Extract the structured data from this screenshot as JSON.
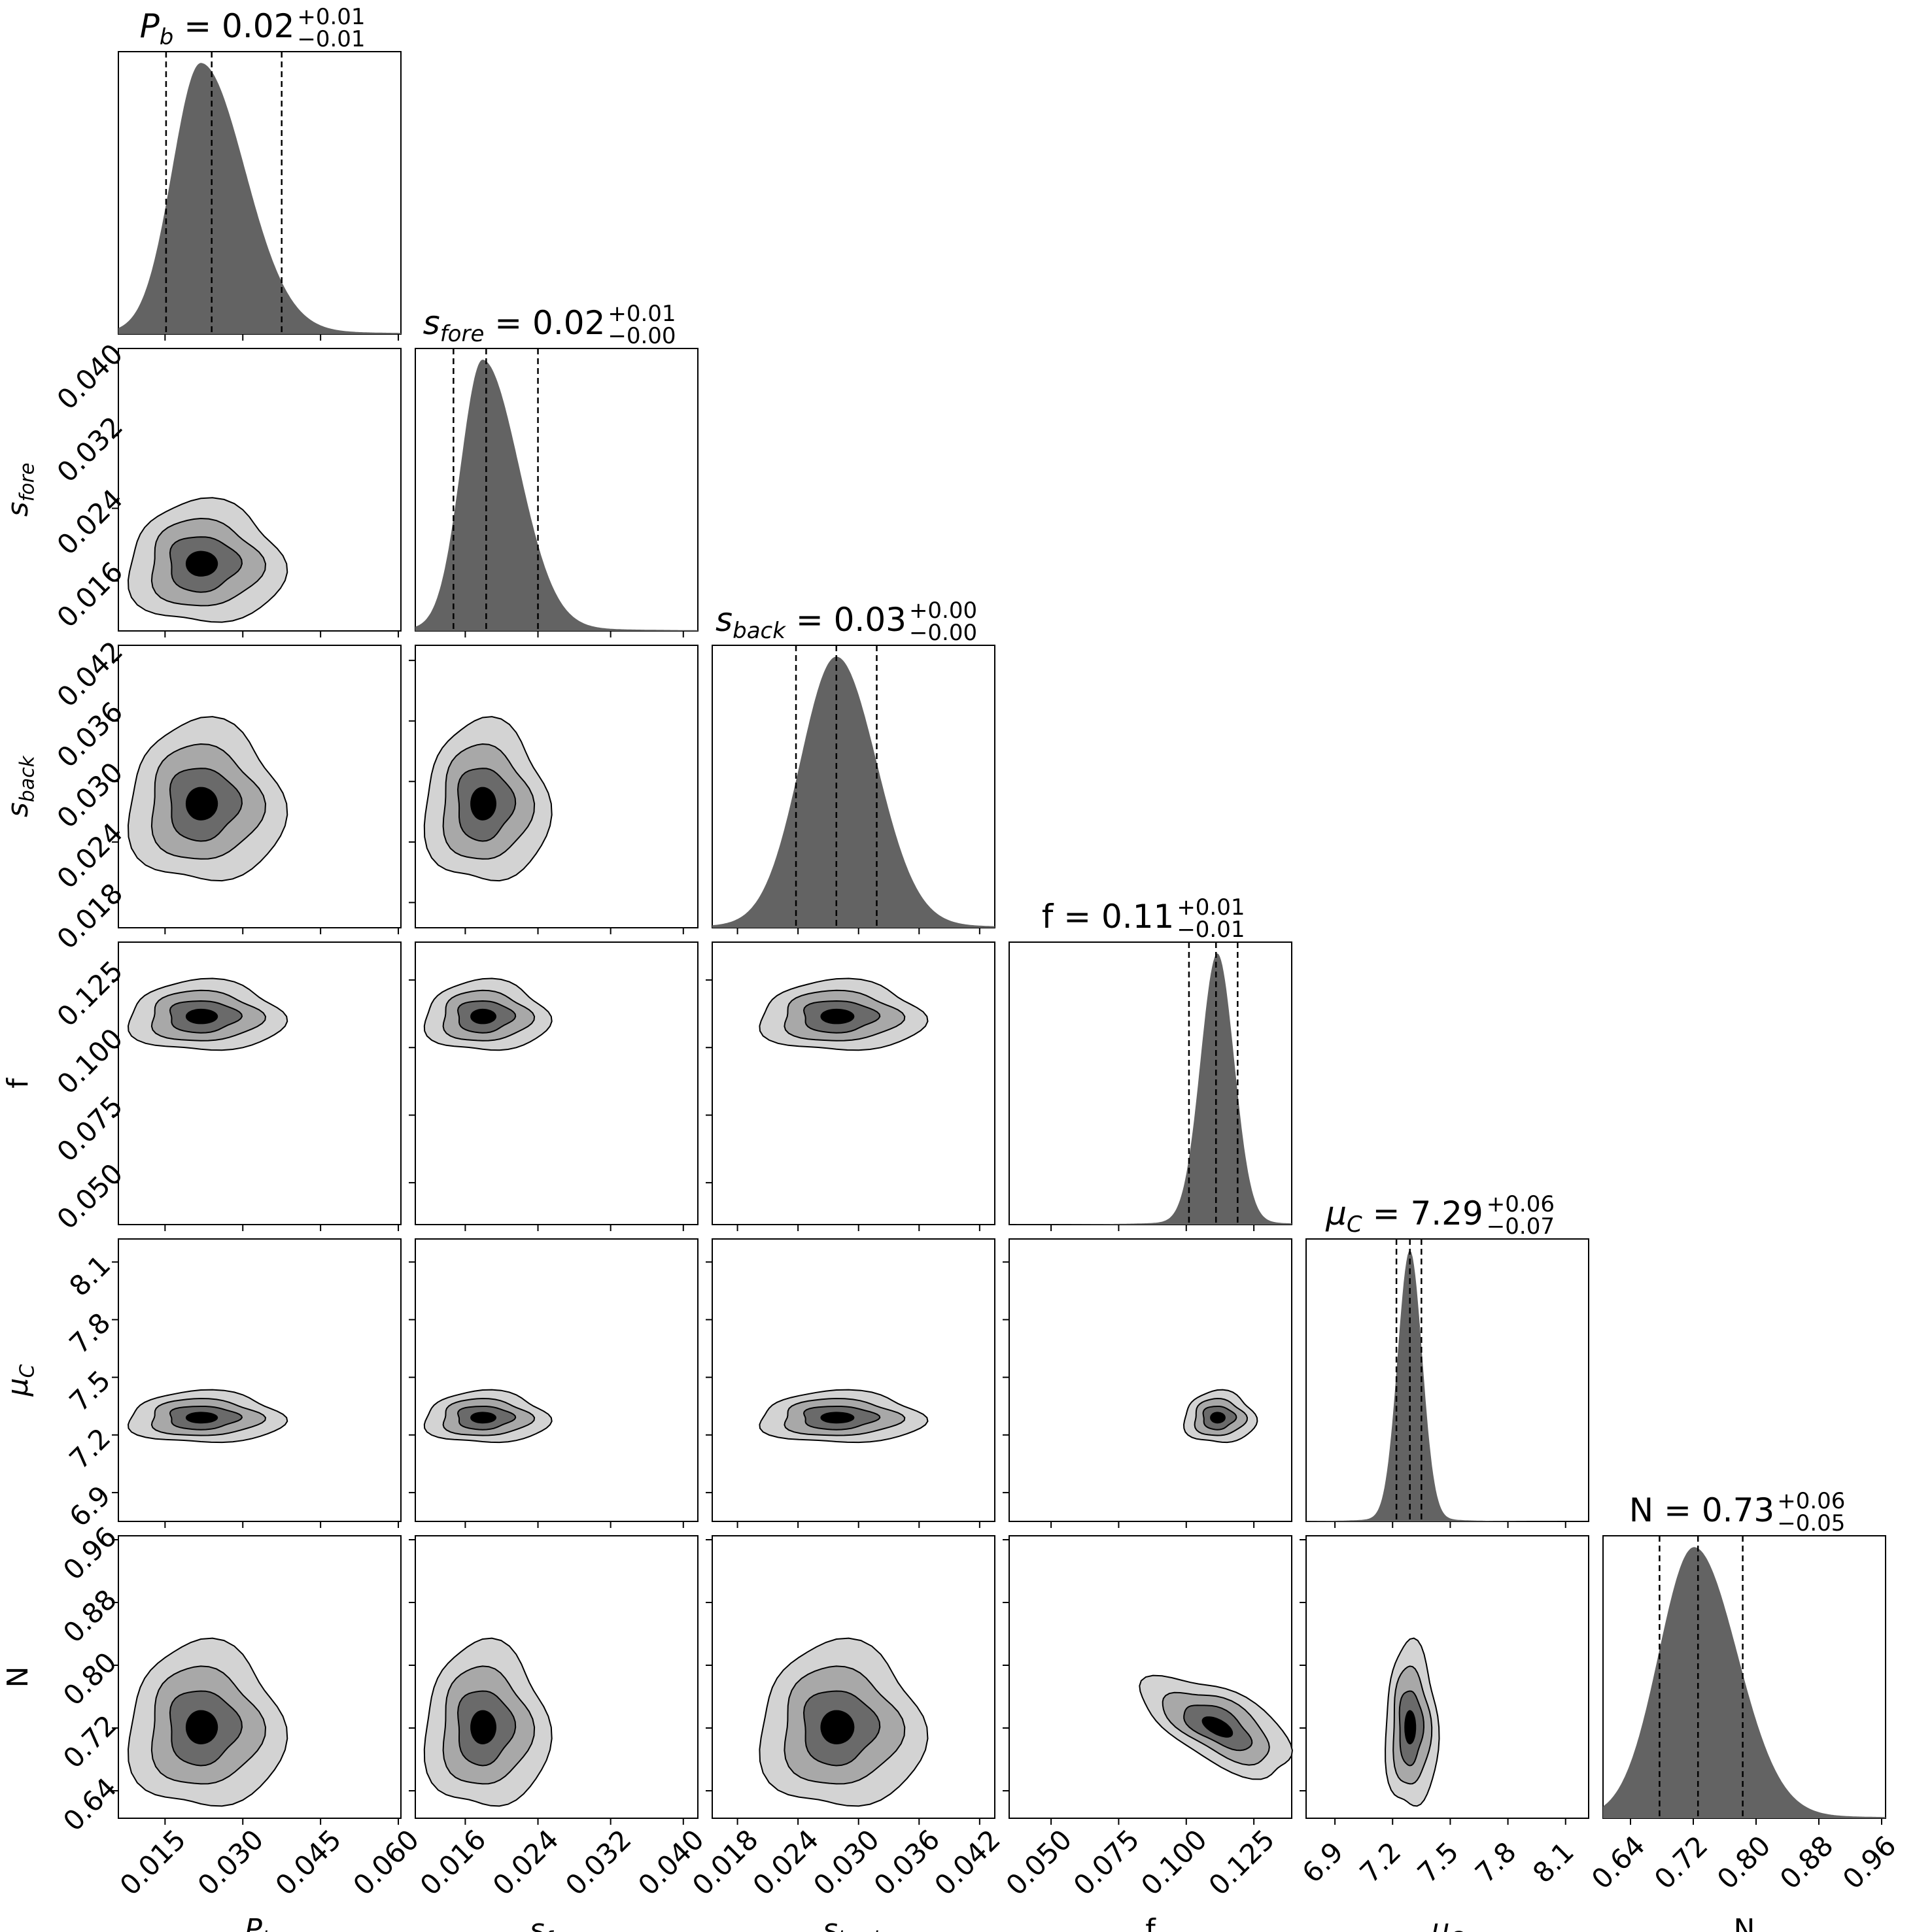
{
  "chart_data": {
    "type": "corner",
    "parameters": [
      {
        "key": "Pb",
        "label_base": "P",
        "label_sub": "b",
        "title_value": "0.02",
        "title_plus": "+0.01",
        "title_minus": "−0.01",
        "median": 0.024,
        "q16": 0.0152,
        "q84": 0.0375,
        "range": [
          0.006,
          0.0605
        ],
        "ticks": [
          "0.015",
          "0.030",
          "0.045",
          "0.060"
        ],
        "tick_values": [
          0.015,
          0.03,
          0.045,
          0.06
        ],
        "hist": {
          "peak": 0.0219,
          "sigma_left": 0.0055,
          "sigma_right": 0.0085
        }
      },
      {
        "key": "sfore",
        "label_base": "s",
        "label_sub": "fore",
        "title_value": "0.02",
        "title_plus": "+0.01",
        "title_minus": "−0.00",
        "median": 0.0183,
        "q16": 0.0147,
        "q84": 0.024,
        "range": [
          0.0105,
          0.0416
        ],
        "ticks": [
          "0.016",
          "0.024",
          "0.032",
          "0.040"
        ],
        "tick_values": [
          0.016,
          0.024,
          0.032,
          0.04
        ],
        "hist": {
          "peak": 0.0179,
          "sigma_left": 0.0024,
          "sigma_right": 0.004
        }
      },
      {
        "key": "sback",
        "label_base": "s",
        "label_sub": "back",
        "title_value": "0.03",
        "title_plus": "+0.00",
        "title_minus": "−0.00",
        "median": 0.0278,
        "q16": 0.0238,
        "q84": 0.0318,
        "range": [
          0.0155,
          0.0435
        ],
        "ticks": [
          "0.018",
          "0.024",
          "0.030",
          "0.036",
          "0.042"
        ],
        "tick_values": [
          0.018,
          0.024,
          0.03,
          0.036,
          0.042
        ],
        "hist": {
          "peak": 0.0278,
          "sigma_left": 0.0036,
          "sigma_right": 0.004
        }
      },
      {
        "key": "f",
        "label_base": "f",
        "label_sub": "",
        "title_value": "0.11",
        "title_plus": "+0.01",
        "title_minus": "−0.01",
        "median": 0.111,
        "q16": 0.101,
        "q84": 0.119,
        "range": [
          0.0345,
          0.139
        ],
        "ticks": [
          "0.050",
          "0.075",
          "0.100",
          "0.125"
        ],
        "tick_values": [
          0.05,
          0.075,
          0.1,
          0.125
        ],
        "hist": {
          "peak": 0.1115,
          "sigma_left": 0.0062,
          "sigma_right": 0.0062
        }
      },
      {
        "key": "muC",
        "label_base": "μ",
        "label_sub": "C",
        "title_value": "7.29",
        "title_plus": "+0.06",
        "title_minus": "−0.07",
        "median": 7.29,
        "q16": 7.22,
        "q84": 7.35,
        "range": [
          6.75,
          8.22
        ],
        "ticks": [
          "6.9",
          "7.2",
          "7.5",
          "7.8",
          "8.1"
        ],
        "tick_values": [
          6.9,
          7.2,
          7.5,
          7.8,
          8.1
        ],
        "hist": {
          "peak": 7.29,
          "sigma_left": 0.064,
          "sigma_right": 0.064
        }
      },
      {
        "key": "N",
        "label_base": "N",
        "label_sub": "",
        "title_value": "0.73",
        "title_plus": "+0.06",
        "title_minus": "−0.05",
        "median": 0.726,
        "q16": 0.677,
        "q84": 0.783,
        "range": [
          0.605,
          0.965
        ],
        "ticks": [
          "0.64",
          "0.72",
          "0.80",
          "0.88",
          "0.96"
        ],
        "tick_values": [
          0.64,
          0.72,
          0.8,
          0.88,
          0.96
        ],
        "hist": {
          "peak": 0.721,
          "sigma_left": 0.045,
          "sigma_right": 0.055
        }
      }
    ],
    "contour_levels": 4,
    "contour_fill_colors": [
      "#d3d3d3",
      "#a8a8a8",
      "#6a6a6a",
      "#000000"
    ],
    "hist_color": "#636363",
    "quantile_line_style": "dashed"
  }
}
